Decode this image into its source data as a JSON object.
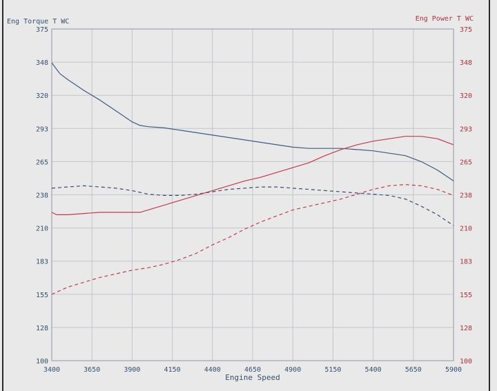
{
  "chart_data": {
    "type": "line",
    "xlabel": "Engine Speed",
    "ylabel_left": "Eng Torque T WC",
    "ylabel_right": "Eng Power T WC",
    "xlim": [
      3400,
      5900
    ],
    "ylim_left": [
      100,
      375
    ],
    "ylim_right": [
      100,
      375
    ],
    "x_ticks": [
      "3400",
      "3650",
      "3900",
      "4150",
      "4400",
      "4650",
      "4900",
      "5150",
      "5400",
      "5650",
      "5900"
    ],
    "y_ticks_left": [
      "100",
      "128",
      "155",
      "183",
      "210",
      "238",
      "265",
      "293",
      "320",
      "348",
      "375"
    ],
    "y_ticks_right": [
      "100",
      "128",
      "155",
      "183",
      "210",
      "238",
      "265",
      "293",
      "320",
      "348",
      "375"
    ],
    "grid": true,
    "series": [
      {
        "axis": "left",
        "style": "solid",
        "color": "#3f5a82",
        "x": [
          3400,
          3450,
          3500,
          3600,
          3700,
          3800,
          3900,
          3950,
          4000,
          4100,
          4200,
          4300,
          4400,
          4500,
          4600,
          4700,
          4800,
          4900,
          5000,
          5100,
          5200,
          5300,
          5400,
          5500,
          5600,
          5700,
          5800,
          5900
        ],
        "y": [
          347,
          338,
          333,
          324,
          316,
          307,
          298,
          295,
          294,
          293,
          291,
          289,
          287,
          285,
          283,
          281,
          279,
          277,
          276,
          276,
          276,
          275,
          274,
          272,
          270,
          265,
          258,
          249
        ]
      },
      {
        "axis": "left",
        "style": "dashed",
        "color": "#3a4a6a",
        "x": [
          3400,
          3500,
          3600,
          3700,
          3800,
          3900,
          4000,
          4100,
          4200,
          4300,
          4400,
          4500,
          4600,
          4700,
          4800,
          4900,
          5000,
          5100,
          5200,
          5300,
          5400,
          5500,
          5600,
          5700,
          5800,
          5900
        ],
        "y": [
          243,
          244,
          245,
          244,
          243,
          241,
          238,
          237,
          237,
          238,
          240,
          242,
          243,
          244,
          244,
          243,
          242,
          241,
          240,
          239,
          238,
          237,
          234,
          228,
          221,
          212
        ]
      },
      {
        "axis": "right",
        "style": "solid",
        "color": "#c23a4a",
        "x": [
          3400,
          3430,
          3500,
          3600,
          3700,
          3800,
          3900,
          3950,
          4000,
          4100,
          4200,
          4300,
          4400,
          4500,
          4600,
          4700,
          4800,
          4900,
          5000,
          5100,
          5200,
          5300,
          5400,
          5500,
          5600,
          5700,
          5800,
          5900
        ],
        "y": [
          223,
          221,
          221,
          222,
          223,
          223,
          223,
          223,
          225,
          229,
          233,
          237,
          241,
          245,
          249,
          252,
          256,
          260,
          264,
          270,
          275,
          279,
          282,
          284,
          286,
          286,
          284,
          279
        ]
      },
      {
        "axis": "right",
        "style": "dashed",
        "color": "#c23a4a",
        "x": [
          3400,
          3500,
          3600,
          3700,
          3800,
          3900,
          4000,
          4100,
          4200,
          4300,
          4400,
          4500,
          4600,
          4700,
          4800,
          4900,
          5000,
          5100,
          5200,
          5300,
          5400,
          5500,
          5600,
          5700,
          5800,
          5900
        ],
        "y": [
          155,
          161,
          165,
          169,
          172,
          175,
          177,
          180,
          184,
          189,
          196,
          202,
          209,
          215,
          220,
          225,
          228,
          231,
          234,
          238,
          242,
          245,
          246,
          245,
          242,
          237
        ]
      }
    ]
  }
}
